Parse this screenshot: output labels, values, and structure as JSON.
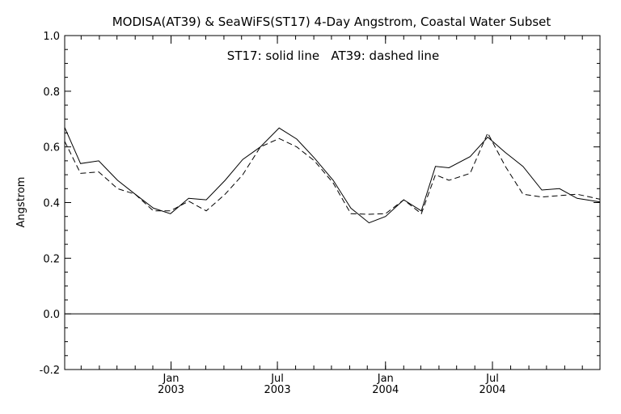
{
  "chart_data": {
    "type": "line",
    "title": "MODISA(AT39) & SeaWiFS(ST17) 4-Day Angstrom, Coastal Water Subset",
    "annotation": "ST17: solid line   AT39: dashed line",
    "xlabel": "",
    "ylabel": "Angstrom",
    "ylim": [
      -0.2,
      1.0
    ],
    "xlim": [
      "2002-07-04",
      "2004-12-31"
    ],
    "yticks": [
      "-0.2",
      "0.0",
      "0.2",
      "0.4",
      "0.6",
      "0.8",
      "1.0"
    ],
    "xticks": [
      {
        "date": "2003-01-01",
        "line1": "Jan",
        "line2": "2003"
      },
      {
        "date": "2003-07-01",
        "line1": "Jul",
        "line2": "2003"
      },
      {
        "date": "2004-01-01",
        "line1": "Jan",
        "line2": "2004"
      },
      {
        "date": "2004-07-01",
        "line1": "Jul",
        "line2": "2004"
      }
    ],
    "minor_ticks_monthly": true,
    "reference_line_y": 0.0,
    "series": [
      {
        "style": "solid",
        "color": "#000000",
        "x": [
          "2002-07-04",
          "2002-07-31",
          "2002-08-31",
          "2002-10-02",
          "2002-11-01",
          "2002-12-02",
          "2002-12-31",
          "2003-01-31",
          "2003-03-02",
          "2003-04-03",
          "2003-05-03",
          "2003-06-02",
          "2003-07-04",
          "2003-08-03",
          "2003-09-02",
          "2003-10-04",
          "2003-11-03",
          "2003-12-04",
          "2004-01-01",
          "2004-02-01",
          "2004-03-02",
          "2004-03-26",
          "2004-04-18",
          "2004-05-24",
          "2004-06-23",
          "2004-07-23",
          "2004-08-22",
          "2004-09-23",
          "2004-10-23",
          "2004-11-22",
          "2004-12-31"
        ],
        "y": [
          0.67,
          0.54,
          0.55,
          0.48,
          0.43,
          0.38,
          0.36,
          0.415,
          0.41,
          0.48,
          0.555,
          0.6,
          0.668,
          0.628,
          0.56,
          0.48,
          0.38,
          0.327,
          0.35,
          0.41,
          0.37,
          0.53,
          0.525,
          0.565,
          0.635,
          0.58,
          0.53,
          0.445,
          0.45,
          0.415,
          0.402
        ]
      },
      {
        "style": "dashed",
        "color": "#000000",
        "x": [
          "2002-07-04",
          "2002-07-31",
          "2002-08-31",
          "2002-10-02",
          "2002-11-01",
          "2002-12-02",
          "2002-12-31",
          "2003-01-31",
          "2003-03-02",
          "2003-04-03",
          "2003-05-03",
          "2003-06-02",
          "2003-07-04",
          "2003-08-03",
          "2003-09-02",
          "2003-10-04",
          "2003-11-03",
          "2003-12-04",
          "2004-01-01",
          "2004-02-01",
          "2004-03-02",
          "2004-03-26",
          "2004-04-18",
          "2004-05-24",
          "2004-06-23",
          "2004-07-23",
          "2004-08-22",
          "2004-09-23",
          "2004-10-23",
          "2004-11-22",
          "2004-12-31"
        ],
        "y": [
          0.62,
          0.505,
          0.51,
          0.45,
          0.43,
          0.37,
          0.37,
          0.405,
          0.37,
          0.43,
          0.5,
          0.6,
          0.63,
          0.6,
          0.55,
          0.47,
          0.36,
          0.358,
          0.36,
          0.41,
          0.36,
          0.5,
          0.48,
          0.505,
          0.65,
          0.53,
          0.43,
          0.42,
          0.425,
          0.43,
          0.412
        ]
      }
    ]
  }
}
